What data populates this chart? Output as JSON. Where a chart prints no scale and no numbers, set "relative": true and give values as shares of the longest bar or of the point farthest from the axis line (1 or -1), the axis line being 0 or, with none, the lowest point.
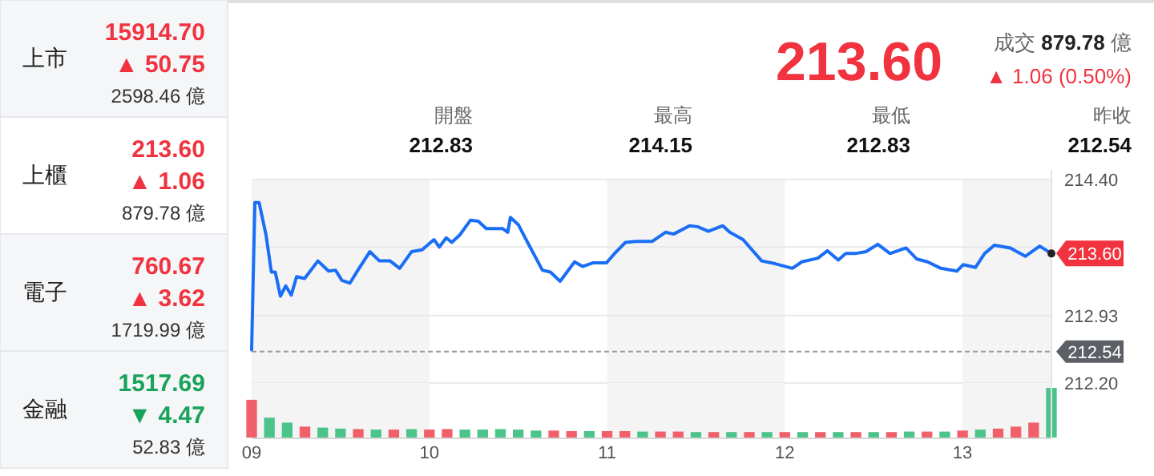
{
  "chart_data": [
    {
      "type": "other",
      "categories": [
        "上市",
        "上櫃",
        "電子",
        "金融"
      ],
      "annotations": [
        "15914.70",
        "▲ 50.75",
        "2598.46 億",
        "213.60",
        "▲ 1.06",
        "879.78 億",
        "760.67",
        "▲ 3.62",
        "1719.99 億",
        "1517.69",
        "▼ 4.47",
        "52.83 億"
      ],
      "title": null
    },
    {
      "type": "line",
      "title": "213.60",
      "subtitle": "成交 **879.78** 億",
      "annotations": [
        "▲ 1.06 (0.50%)",
        "開盤",
        "212.83",
        "最高",
        "214.15",
        "最低",
        "212.83",
        "昨收",
        "212.54",
        {
          "text": "213.60",
          "x": 13.5,
          "y": 213.6
        }
      ],
      "series": [
        {
          "color": "#1a6ef5",
          "x": [
            9.0,
            9.018,
            9.042,
            9.081,
            9.111,
            9.133,
            9.162,
            9.192,
            9.223,
            9.253,
            9.298,
            9.373,
            9.433,
            9.472,
            9.508,
            9.553,
            9.598,
            9.665,
            9.719,
            9.779,
            9.833,
            9.9,
            9.959,
            10.026,
            10.056,
            10.095,
            10.126,
            10.171,
            10.231,
            10.275,
            10.32,
            10.411,
            10.441,
            10.456,
            10.501,
            10.561,
            10.636,
            10.681,
            10.736,
            10.817,
            10.862,
            10.922,
            10.997,
            11.042,
            11.103,
            11.163,
            11.253,
            11.329,
            11.374,
            11.464,
            11.509,
            11.57,
            11.651,
            11.69,
            11.765,
            11.87,
            11.946,
            12.042,
            12.096,
            12.186,
            12.24,
            12.301,
            12.343,
            12.397,
            12.457,
            12.523,
            12.592,
            12.682,
            12.743,
            12.803,
            12.878,
            12.968,
            13.004,
            13.073,
            13.124,
            13.179,
            13.269,
            13.353,
            13.434,
            13.5
          ],
          "values": [
            212.56,
            214.15,
            214.15,
            213.8,
            213.4,
            213.4,
            213.14,
            213.25,
            213.15,
            213.35,
            213.33,
            213.52,
            213.41,
            213.42,
            213.31,
            213.28,
            213.42,
            213.62,
            213.52,
            213.52,
            213.44,
            213.62,
            213.64,
            213.75,
            213.67,
            213.77,
            213.72,
            213.8,
            213.96,
            213.95,
            213.87,
            213.87,
            213.83,
            213.99,
            213.91,
            213.69,
            213.42,
            213.4,
            213.3,
            213.51,
            213.46,
            213.5,
            213.5,
            213.6,
            213.72,
            213.73,
            213.73,
            213.83,
            213.81,
            213.9,
            213.89,
            213.84,
            213.9,
            213.83,
            213.75,
            213.52,
            213.49,
            213.44,
            213.51,
            213.55,
            213.63,
            213.53,
            213.6,
            213.6,
            213.62,
            213.7,
            213.6,
            213.66,
            213.54,
            213.51,
            213.44,
            213.41,
            213.48,
            213.45,
            213.6,
            213.69,
            213.66,
            213.57,
            213.68,
            213.6
          ]
        }
      ],
      "xlim": [
        9,
        13.5
      ],
      "ylim": [
        212.2,
        214.4
      ],
      "yticks": [
        {
          "value": 214.4,
          "label": "214.40"
        },
        {
          "value": 213.67,
          "label": null
        },
        212.93,
        {
          "value": 212.2,
          "label": "212.20"
        }
      ],
      "grid": "y",
      "tick_labels": "y",
      "line_style": "solid",
      "ref_lines": [
        {
          "axis": "y",
          "value": 212.54,
          "label": "212.54",
          "color": "#9a9a9a",
          "line_style": "dashed"
        }
      ],
      "bands": [
        {
          "axis": "x",
          "from": 9,
          "to": 10,
          "color": "#f4f4f4"
        },
        {
          "axis": "x",
          "from": 11,
          "to": 12,
          "color": "#f4f4f4"
        },
        {
          "axis": "x",
          "from": 13,
          "to": 13.5,
          "color": "#f4f4f4"
        }
      ]
    },
    {
      "type": "bar",
      "relative": true,
      "tick_labels": "x",
      "x": [
        9.0,
        9.1,
        9.2,
        9.3,
        9.4,
        9.5,
        9.6,
        9.7,
        9.8,
        9.9,
        10.0,
        10.1,
        10.2,
        10.3,
        10.4,
        10.5,
        10.6,
        10.7,
        10.8,
        10.9,
        11.0,
        11.1,
        11.2,
        11.3,
        11.4,
        11.5,
        11.6,
        11.7,
        11.8,
        11.9,
        12.0,
        12.1,
        12.2,
        12.3,
        12.4,
        12.5,
        12.6,
        12.7,
        12.8,
        12.9,
        13.0,
        13.1,
        13.2,
        13.3,
        13.4,
        13.5
      ],
      "values": [
        0.76,
        0.4,
        0.3,
        0.22,
        0.2,
        0.18,
        0.17,
        0.16,
        0.16,
        0.17,
        0.16,
        0.17,
        0.16,
        0.16,
        0.17,
        0.16,
        0.14,
        0.14,
        0.13,
        0.13,
        0.13,
        0.13,
        0.12,
        0.12,
        0.12,
        0.11,
        0.11,
        0.11,
        0.11,
        0.11,
        0.11,
        0.11,
        0.11,
        0.11,
        0.11,
        0.11,
        0.11,
        0.12,
        0.12,
        0.12,
        0.14,
        0.16,
        0.18,
        0.22,
        0.3,
        1.0
      ],
      "colors": [
        "#f0606a",
        "#4cc38a",
        "#4cc38a",
        "#f0606a",
        "#4cc38a",
        "#4cc38a",
        "#f0606a",
        "#4cc38a",
        "#f0606a",
        "#4cc38a",
        "#f0606a",
        "#f0606a",
        "#4cc38a",
        "#4cc38a",
        "#4cc38a",
        "#4cc38a",
        "#4cc38a",
        "#f0606a",
        "#f0606a",
        "#4cc38a",
        "#f0606a",
        "#f0606a",
        "#4cc38a",
        "#f0606a",
        "#f0606a",
        "#4cc38a",
        "#f0606a",
        "#4cc38a",
        "#f0606a",
        "#4cc38a",
        "#f0606a",
        "#4cc38a",
        "#f0606a",
        "#4cc38a",
        "#f0606a",
        "#4cc38a",
        "#f0606a",
        "#4cc38a",
        "#f0606a",
        "#4cc38a",
        "#f0606a",
        "#4cc38a",
        "#f0606a",
        "#f0606a",
        "#f0606a",
        "#4cc38a"
      ],
      "xlim": [
        9,
        13.5
      ],
      "xticks": [
        {
          "value": 9,
          "label": "09"
        },
        {
          "value": 10,
          "label": "10"
        },
        {
          "value": 11,
          "label": "11"
        },
        {
          "value": 12,
          "label": "12"
        },
        {
          "value": 13,
          "label": "13"
        }
      ],
      "bands": [
        {
          "axis": "x",
          "from": 9,
          "to": 10,
          "color": "#f4f4f4"
        },
        {
          "axis": "x",
          "from": 11,
          "to": 12,
          "color": "#f4f4f4"
        },
        {
          "axis": "x",
          "from": 13,
          "to": 13.5,
          "color": "#f4f4f4"
        }
      ]
    }
  ]
}
